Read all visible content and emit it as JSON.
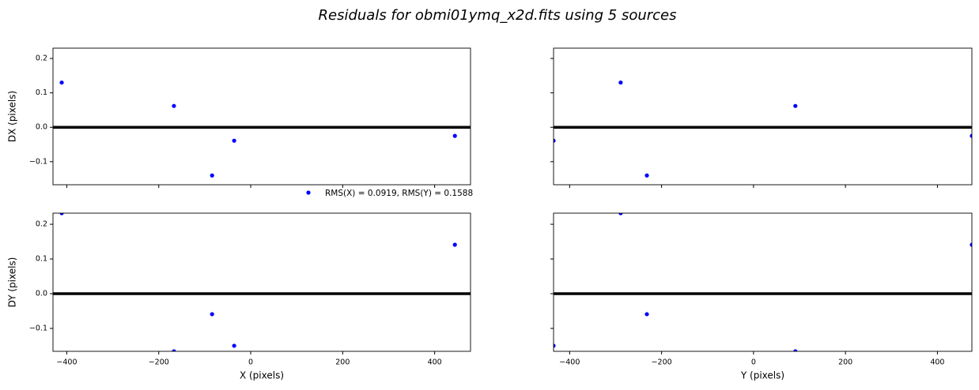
{
  "title": "Residuals for obmi01ymq_x2d.fits using 5 sources",
  "legend": {
    "label": "RMS(X) = 0.0919, RMS(Y) = 0.1588",
    "color": "#0000ff"
  },
  "chart_data": [
    {
      "type": "scatter",
      "ylabel": "DX (pixels)",
      "color": "#0000ff",
      "hline": 0,
      "x": [
        -411,
        -167,
        -84,
        -36,
        444
      ],
      "values": [
        0.13,
        0.062,
        -0.14,
        -0.039,
        -0.025
      ],
      "xlim": [
        -430,
        478
      ],
      "ylim": [
        -0.167,
        0.23
      ],
      "xticks": [
        -400,
        -200,
        0,
        200,
        400
      ],
      "xticklabels": false,
      "yticks": [
        {
          "value": -0.1,
          "label": "−0.1"
        },
        {
          "value": 0,
          "label": "0.0"
        },
        0.1,
        0.2
      ],
      "yticklabels": true
    },
    {
      "type": "scatter",
      "color": "#0000ff",
      "hline": 0,
      "x": [
        -435,
        -289,
        -232,
        91,
        475
      ],
      "values": [
        -0.039,
        0.13,
        -0.14,
        0.062,
        -0.025
      ],
      "xlim": [
        -435,
        475
      ],
      "ylim": [
        -0.167,
        0.23
      ],
      "xticks": [
        -400,
        -200,
        0,
        200,
        400
      ],
      "xticklabels": false,
      "yticks": [
        -0.1,
        0,
        0.1,
        0.2
      ],
      "yticklabels": false
    },
    {
      "type": "scatter",
      "ylabel": "DY (pixels)",
      "xlabel": "X (pixels)",
      "color": "#0000ff",
      "hline": 0,
      "x": [
        -411,
        -167,
        -84,
        -36,
        444
      ],
      "values": [
        0.232,
        -0.166,
        -0.059,
        -0.15,
        0.141
      ],
      "xlim": [
        -430,
        478
      ],
      "ylim": [
        -0.166,
        0.232
      ],
      "xticks": [
        {
          "value": -400,
          "label": "−400"
        },
        {
          "value": -200,
          "label": "−200"
        },
        0,
        200,
        400
      ],
      "xticklabels": true,
      "yticks": [
        {
          "value": -0.1,
          "label": "−0.1"
        },
        {
          "value": 0,
          "label": "0.0"
        },
        0.1,
        0.2
      ],
      "yticklabels": true
    },
    {
      "type": "scatter",
      "xlabel": "Y (pixels)",
      "color": "#0000ff",
      "hline": 0,
      "x": [
        -435,
        -289,
        -232,
        91,
        475
      ],
      "values": [
        -0.15,
        0.232,
        -0.059,
        -0.166,
        0.141
      ],
      "xlim": [
        -435,
        475
      ],
      "ylim": [
        -0.166,
        0.232
      ],
      "xticks": [
        {
          "value": -400,
          "label": "−400"
        },
        {
          "value": -200,
          "label": "−200"
        },
        0,
        200,
        400
      ],
      "xticklabels": true,
      "yticks": [
        -0.1,
        0,
        0.1,
        0.2
      ],
      "yticklabels": false
    }
  ]
}
